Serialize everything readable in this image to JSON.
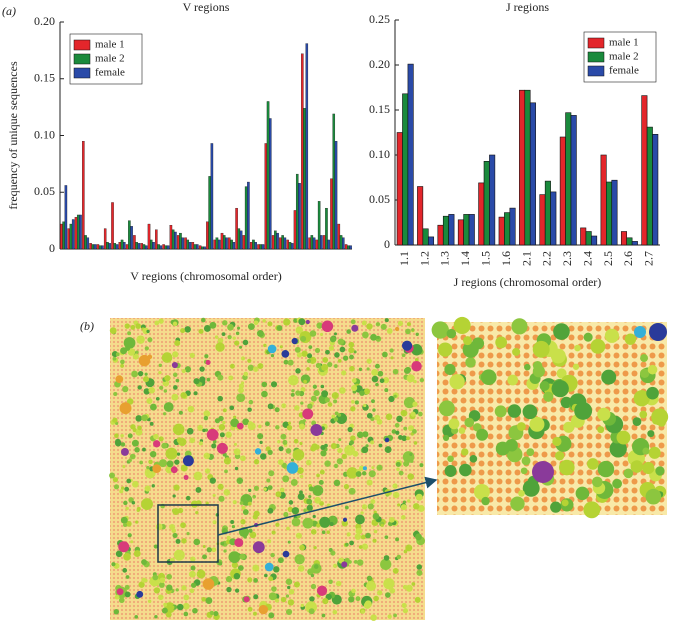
{
  "panel_labels": [
    "(a)",
    "(b)"
  ],
  "chart_data": [
    {
      "type": "bar",
      "title": "V regions",
      "xlabel": "V regions (chromosomal order)",
      "ylabel": "frequency of unique sequences",
      "categories": [
        null,
        null,
        null,
        null,
        null,
        null,
        null,
        null,
        null,
        null,
        null,
        null,
        null,
        null,
        null,
        null,
        null,
        null,
        null,
        null,
        null,
        null,
        null,
        null,
        null,
        null,
        null,
        null,
        null,
        null,
        null,
        null,
        null,
        null,
        null,
        null,
        null,
        null,
        null,
        null
      ],
      "series": [
        {
          "name": "male 1",
          "color": "#e3262b",
          "values": [
            0.022,
            0.018,
            0.028,
            0.095,
            0.005,
            0.004,
            0.018,
            0.041,
            0.006,
            0.004,
            0.012,
            0.005,
            0.022,
            0.017,
            0.004,
            0.021,
            0.012,
            0.01,
            0.006,
            0.003,
            0.024,
            0.008,
            0.014,
            0.01,
            0.036,
            0.012,
            0.006,
            0.004,
            0.093,
            0.012,
            0.01,
            0.008,
            0.034,
            0.172,
            0.01,
            0.008,
            0.012,
            0.062,
            0.022,
            0.004
          ]
        },
        {
          "name": "male 2",
          "color": "#1a8a3c",
          "values": [
            0.024,
            0.022,
            0.03,
            0.012,
            0.004,
            0.003,
            0.006,
            0.005,
            0.008,
            0.025,
            0.006,
            0.004,
            0.008,
            0.004,
            0.003,
            0.017,
            0.014,
            0.008,
            0.004,
            0.002,
            0.064,
            0.01,
            0.012,
            0.008,
            0.018,
            0.055,
            0.008,
            0.004,
            0.13,
            0.016,
            0.012,
            0.006,
            0.066,
            0.124,
            0.012,
            0.042,
            0.036,
            0.119,
            0.012,
            0.003
          ]
        },
        {
          "name": "female",
          "color": "#2a4aa8",
          "values": [
            0.056,
            0.026,
            0.03,
            0.01,
            0.004,
            0.003,
            0.005,
            0.004,
            0.006,
            0.02,
            0.005,
            0.003,
            0.006,
            0.003,
            0.003,
            0.015,
            0.01,
            0.006,
            0.004,
            0.002,
            0.093,
            0.008,
            0.01,
            0.006,
            0.016,
            0.059,
            0.006,
            0.004,
            0.115,
            0.014,
            0.01,
            0.005,
            0.058,
            0.181,
            0.01,
            0.012,
            0.008,
            0.095,
            0.01,
            0.003
          ]
        }
      ],
      "ylim": [
        0,
        0.2
      ],
      "yticks": [
        0,
        0.05,
        {
          "value": 0.1,
          "label": "0.10"
        },
        0.15,
        {
          "value": 0.2,
          "label": "0.20"
        }
      ],
      "legend": "upper left"
    },
    {
      "type": "bar",
      "title": "J regions",
      "xlabel": "J regions (chromosomal order)",
      "categories": [
        "1.1",
        "1.2",
        "1.3",
        "1.4",
        "1.5",
        "1.6",
        "2.1",
        "2.2",
        "2.3",
        "2.4",
        "2.5",
        "2.6",
        "2.7"
      ],
      "series": [
        {
          "name": "male 1",
          "color": "#e3262b",
          "values": [
            0.125,
            0.065,
            0.022,
            0.028,
            0.069,
            0.031,
            0.172,
            0.056,
            0.12,
            0.019,
            0.1,
            0.015,
            0.166
          ]
        },
        {
          "name": "male 2",
          "color": "#1a8a3c",
          "values": [
            0.168,
            0.018,
            0.032,
            0.034,
            0.093,
            0.036,
            0.172,
            0.071,
            0.147,
            0.015,
            0.07,
            0.008,
            0.131
          ]
        },
        {
          "name": "female",
          "color": "#2a4aa8",
          "values": [
            0.201,
            0.009,
            0.034,
            0.034,
            0.1,
            0.041,
            0.158,
            0.059,
            0.144,
            0.01,
            0.072,
            0.004,
            0.123
          ]
        }
      ],
      "ylim": [
        0,
        0.25
      ],
      "yticks": [
        0,
        0.05,
        {
          "value": 0.1,
          "label": "0.10"
        },
        0.15,
        {
          "value": 0.2,
          "label": "0.20"
        },
        0.25
      ],
      "legend": "upper right"
    }
  ]
}
